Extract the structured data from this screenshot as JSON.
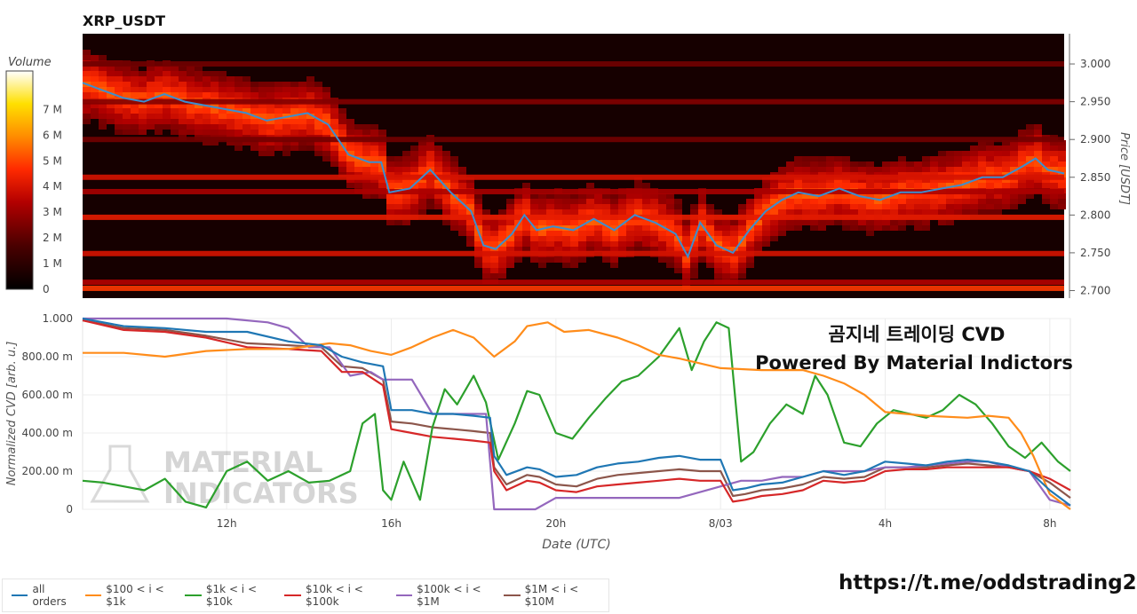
{
  "colors": {
    "price_line": "#3b8ed0",
    "all_orders": "#1f77b4",
    "b100_1k": "#ff8c1a",
    "b1k_10k": "#2ca02c",
    "b10k_100k": "#d62728",
    "b100k_1m": "#9467bd",
    "b1m_10m": "#8c564b"
  },
  "branding": {
    "overlay_title": "곰지네 트레이딩 CVD",
    "overlay_subtitle": "Powered By Material Indictors",
    "watermark_line1": "MATERIAL",
    "watermark_line2": "INDICATORS",
    "link": "https://t.me/oddstrading2"
  },
  "chart_data": [
    {
      "type": "heatmap",
      "title": "XRP_USDT",
      "ylabel": "Price [USDT]",
      "ylim": [
        2.69,
        3.04
      ],
      "yticks": [
        "3.000",
        "2.950",
        "2.900",
        "2.850",
        "2.800",
        "2.750",
        "2.700"
      ],
      "ytick_values": [
        3.0,
        2.95,
        2.9,
        2.85,
        2.8,
        2.75,
        2.7
      ],
      "colorbar": {
        "label": "Volume",
        "ticks": [
          "7 M",
          "6 M",
          "5 M",
          "4 M",
          "3 M",
          "2 M",
          "1 M",
          "0"
        ],
        "tick_values": [
          7,
          6,
          5,
          4,
          3,
          2,
          1,
          0
        ],
        "max": 8.5
      },
      "price_line": {
        "x": [
          8.5,
          9.0,
          9.5,
          10.0,
          10.5,
          11.0,
          11.5,
          12.0,
          12.5,
          13.0,
          13.5,
          14.0,
          14.5,
          15.0,
          15.5,
          15.8,
          16.0,
          16.5,
          17.0,
          17.5,
          18.0,
          18.3,
          18.6,
          19.0,
          19.3,
          19.6,
          20.0,
          20.5,
          21.0,
          21.5,
          22.0,
          22.5,
          23.0,
          23.3,
          23.6,
          24.0,
          24.4,
          24.8,
          25.2,
          25.6,
          26.0,
          26.5,
          27.0,
          27.5,
          28.0,
          28.5,
          29.0,
          29.5,
          30.0,
          30.5,
          31.0,
          31.5,
          31.8,
          32.1,
          32.5
        ],
        "y": [
          2.975,
          2.965,
          2.955,
          2.95,
          2.96,
          2.95,
          2.945,
          2.94,
          2.935,
          2.925,
          2.93,
          2.935,
          2.92,
          2.88,
          2.87,
          2.87,
          2.83,
          2.835,
          2.86,
          2.83,
          2.805,
          2.76,
          2.755,
          2.775,
          2.8,
          2.78,
          2.785,
          2.78,
          2.795,
          2.78,
          2.8,
          2.79,
          2.775,
          2.745,
          2.79,
          2.76,
          2.75,
          2.78,
          2.805,
          2.82,
          2.83,
          2.825,
          2.835,
          2.825,
          2.82,
          2.83,
          2.83,
          2.835,
          2.84,
          2.85,
          2.85,
          2.865,
          2.875,
          2.86,
          2.855
        ]
      },
      "liquidity_bands": [
        {
          "price": 2.703,
          "volume": 4.0
        },
        {
          "price": 2.711,
          "volume": 2.4
        },
        {
          "price": 2.749,
          "volume": 3.0
        },
        {
          "price": 2.797,
          "volume": 3.3
        },
        {
          "price": 2.831,
          "volume": 2.2
        },
        {
          "price": 2.85,
          "volume": 3.0
        },
        {
          "price": 2.9,
          "volume": 1.2
        },
        {
          "price": 2.95,
          "volume": 1.5
        },
        {
          "price": 3.0,
          "volume": 1.2
        }
      ]
    },
    {
      "type": "line",
      "xlabel": "Date (UTC)",
      "ylabel": "Normalized CVD [arb. u.]",
      "xlim": [
        8.5,
        32.5
      ],
      "ylim": [
        0,
        1
      ],
      "xticks": [
        "12h",
        "16h",
        "20h",
        "8/03",
        "4h",
        "8h"
      ],
      "xtick_values": [
        12,
        16,
        20,
        24,
        28,
        32
      ],
      "yticks": [
        "0",
        "200.00 m",
        "400.00 m",
        "600.00 m",
        "800.00 m",
        "1.000"
      ],
      "ytick_values": [
        0,
        0.2,
        0.4,
        0.6,
        0.8,
        1.0
      ],
      "series": [
        {
          "name": "all orders",
          "color_key": "all_orders",
          "x": [
            8.5,
            9.5,
            10.5,
            11.5,
            12.5,
            13.5,
            14.3,
            14.8,
            15.3,
            15.8,
            16.0,
            16.5,
            17.0,
            17.5,
            18.0,
            18.4,
            18.5,
            18.8,
            19.3,
            19.6,
            20.0,
            20.5,
            21.0,
            21.5,
            22.0,
            22.5,
            23.0,
            23.5,
            24.0,
            24.3,
            24.6,
            25.0,
            25.5,
            26.0,
            26.5,
            27.0,
            27.5,
            28.0,
            28.5,
            29.0,
            29.5,
            30.0,
            30.5,
            31.0,
            31.5,
            32.0,
            32.5
          ],
          "y": [
            1.0,
            0.96,
            0.95,
            0.93,
            0.93,
            0.88,
            0.86,
            0.8,
            0.77,
            0.75,
            0.52,
            0.52,
            0.5,
            0.5,
            0.49,
            0.48,
            0.28,
            0.18,
            0.22,
            0.21,
            0.17,
            0.18,
            0.22,
            0.24,
            0.25,
            0.27,
            0.28,
            0.26,
            0.26,
            0.1,
            0.11,
            0.13,
            0.14,
            0.17,
            0.2,
            0.18,
            0.2,
            0.25,
            0.24,
            0.23,
            0.25,
            0.26,
            0.25,
            0.23,
            0.2,
            0.1,
            0.02
          ]
        },
        {
          "name": "$100 < i < $1k",
          "color_key": "b100_1k",
          "x": [
            8.5,
            9.5,
            10.5,
            11.5,
            12.5,
            13.5,
            14.5,
            15.0,
            15.5,
            16.0,
            16.5,
            17.0,
            17.5,
            18.0,
            18.5,
            19.0,
            19.3,
            19.8,
            20.2,
            20.8,
            21.5,
            22.0,
            22.5,
            23.0,
            24.0,
            25.0,
            26.0,
            26.5,
            27.0,
            27.5,
            28.0,
            28.5,
            29.0,
            30.0,
            30.5,
            31.0,
            31.3,
            31.6,
            32.0,
            32.5
          ],
          "y": [
            0.82,
            0.82,
            0.8,
            0.83,
            0.84,
            0.84,
            0.87,
            0.86,
            0.83,
            0.81,
            0.85,
            0.9,
            0.94,
            0.9,
            0.8,
            0.88,
            0.96,
            0.98,
            0.93,
            0.94,
            0.9,
            0.86,
            0.81,
            0.79,
            0.74,
            0.73,
            0.73,
            0.7,
            0.66,
            0.6,
            0.51,
            0.5,
            0.49,
            0.48,
            0.49,
            0.48,
            0.4,
            0.28,
            0.08,
            0.0
          ]
        },
        {
          "name": "$1k < i < $10k",
          "color_key": "b1k_10k",
          "x": [
            8.5,
            9.0,
            9.5,
            10.0,
            10.5,
            11.0,
            11.5,
            12.0,
            12.5,
            13.0,
            13.5,
            14.0,
            14.5,
            15.0,
            15.3,
            15.6,
            15.8,
            16.0,
            16.3,
            16.7,
            17.0,
            17.3,
            17.6,
            18.0,
            18.3,
            18.6,
            19.0,
            19.3,
            19.6,
            20.0,
            20.4,
            20.8,
            21.2,
            21.6,
            22.0,
            22.5,
            23.0,
            23.3,
            23.6,
            23.9,
            24.2,
            24.5,
            24.8,
            25.2,
            25.6,
            26.0,
            26.3,
            26.6,
            27.0,
            27.4,
            27.8,
            28.2,
            28.6,
            29.0,
            29.4,
            29.8,
            30.2,
            30.6,
            31.0,
            31.4,
            31.8,
            32.2,
            32.5
          ],
          "y": [
            0.15,
            0.14,
            0.12,
            0.1,
            0.16,
            0.04,
            0.01,
            0.2,
            0.25,
            0.15,
            0.2,
            0.14,
            0.15,
            0.2,
            0.45,
            0.5,
            0.1,
            0.05,
            0.25,
            0.05,
            0.43,
            0.63,
            0.55,
            0.7,
            0.56,
            0.26,
            0.45,
            0.62,
            0.6,
            0.4,
            0.37,
            0.48,
            0.58,
            0.67,
            0.7,
            0.8,
            0.95,
            0.73,
            0.88,
            0.98,
            0.95,
            0.25,
            0.3,
            0.45,
            0.55,
            0.5,
            0.7,
            0.6,
            0.35,
            0.33,
            0.45,
            0.52,
            0.5,
            0.48,
            0.52,
            0.6,
            0.55,
            0.45,
            0.33,
            0.27,
            0.35,
            0.25,
            0.2
          ]
        },
        {
          "name": "$10k < i < $100k",
          "color_key": "b10k_100k",
          "x": [
            8.5,
            9.5,
            10.5,
            11.5,
            12.5,
            13.5,
            14.3,
            14.8,
            15.3,
            15.8,
            16.0,
            16.5,
            17.0,
            17.5,
            18.0,
            18.4,
            18.5,
            18.8,
            19.3,
            19.6,
            20.0,
            20.5,
            21.0,
            21.5,
            22.0,
            22.5,
            23.0,
            23.5,
            24.0,
            24.3,
            24.6,
            25.0,
            25.5,
            26.0,
            26.5,
            27.0,
            27.5,
            28.0,
            28.5,
            29.0,
            29.5,
            30.0,
            30.5,
            31.0,
            31.5,
            32.0,
            32.5
          ],
          "y": [
            0.99,
            0.94,
            0.93,
            0.9,
            0.85,
            0.84,
            0.83,
            0.72,
            0.72,
            0.65,
            0.42,
            0.4,
            0.38,
            0.37,
            0.36,
            0.35,
            0.2,
            0.1,
            0.15,
            0.14,
            0.1,
            0.09,
            0.12,
            0.13,
            0.14,
            0.15,
            0.16,
            0.15,
            0.15,
            0.04,
            0.05,
            0.07,
            0.08,
            0.1,
            0.15,
            0.14,
            0.15,
            0.2,
            0.21,
            0.21,
            0.22,
            0.22,
            0.22,
            0.22,
            0.2,
            0.16,
            0.1
          ]
        },
        {
          "name": "$100k < i < $1M",
          "color_key": "b100k_1m",
          "x": [
            8.5,
            9.0,
            10.0,
            11.0,
            12.0,
            13.0,
            13.5,
            14.0,
            14.5,
            15.0,
            15.5,
            15.8,
            16.0,
            16.5,
            17.0,
            17.5,
            18.0,
            18.3,
            18.5,
            19.0,
            19.5,
            20.0,
            21.0,
            22.0,
            23.0,
            24.0,
            24.5,
            25.0,
            25.5,
            26.0,
            26.5,
            27.0,
            27.5,
            28.0,
            28.5,
            29.0,
            30.0,
            30.5,
            31.0,
            31.5,
            32.0,
            32.5
          ],
          "y": [
            1.0,
            1.0,
            1.0,
            1.0,
            1.0,
            0.98,
            0.95,
            0.85,
            0.85,
            0.7,
            0.72,
            0.68,
            0.68,
            0.68,
            0.5,
            0.5,
            0.5,
            0.5,
            0.0,
            0.0,
            0.0,
            0.06,
            0.06,
            0.06,
            0.06,
            0.12,
            0.15,
            0.15,
            0.17,
            0.17,
            0.2,
            0.2,
            0.2,
            0.22,
            0.22,
            0.23,
            0.25,
            0.25,
            0.22,
            0.2,
            0.05,
            0.02
          ]
        },
        {
          "name": "$1M < i < $10M",
          "color_key": "b1m_10m",
          "x": [
            8.5,
            9.5,
            10.5,
            11.5,
            12.5,
            13.5,
            14.3,
            14.8,
            15.3,
            15.8,
            16.0,
            16.5,
            17.0,
            17.5,
            18.0,
            18.4,
            18.5,
            18.8,
            19.3,
            19.6,
            20.0,
            20.5,
            21.0,
            21.5,
            22.0,
            22.5,
            23.0,
            23.5,
            24.0,
            24.3,
            24.6,
            25.0,
            25.5,
            26.0,
            26.5,
            27.0,
            27.5,
            28.0,
            28.5,
            29.0,
            29.5,
            30.0,
            30.5,
            31.0,
            31.5,
            32.0,
            32.5
          ],
          "y": [
            0.99,
            0.95,
            0.94,
            0.91,
            0.87,
            0.86,
            0.85,
            0.75,
            0.74,
            0.68,
            0.46,
            0.45,
            0.43,
            0.42,
            0.41,
            0.4,
            0.22,
            0.13,
            0.18,
            0.17,
            0.13,
            0.12,
            0.16,
            0.18,
            0.19,
            0.2,
            0.21,
            0.2,
            0.2,
            0.07,
            0.08,
            0.1,
            0.11,
            0.13,
            0.17,
            0.16,
            0.17,
            0.22,
            0.22,
            0.22,
            0.23,
            0.24,
            0.23,
            0.22,
            0.2,
            0.14,
            0.06
          ]
        }
      ]
    }
  ]
}
